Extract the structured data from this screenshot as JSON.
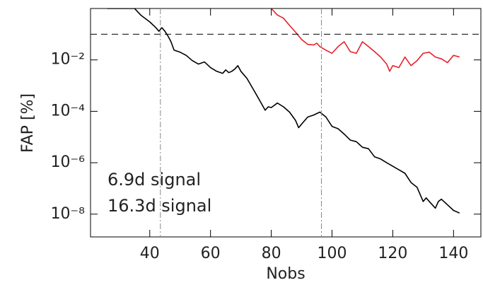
{
  "chart_data": {
    "type": "line",
    "xlabel": "Nobs",
    "ylabel": "FAP [%]",
    "xlim": [
      20.5,
      149
    ],
    "ylim": [
      1.3e-09,
      1
    ],
    "log_y": true,
    "xticks": [
      40,
      60,
      80,
      100,
      120,
      140
    ],
    "yticks": [
      {
        "value": 0.01,
        "label": "10⁻²"
      },
      {
        "value": 0.0001,
        "label": "10⁻⁴"
      },
      {
        "value": 1e-06,
        "label": "10⁻⁶"
      },
      {
        "value": 1e-08,
        "label": "10⁻⁸"
      }
    ],
    "hlines": [
      0.1
    ],
    "vlines": [
      43.5,
      96.5
    ],
    "series": [
      {
        "name": "6.9d signal",
        "color": "#e8202a",
        "x": [
          80,
          82,
          84,
          86,
          88,
          90,
          92,
          94,
          95,
          96,
          98,
          100,
          102,
          104,
          106,
          108,
          110,
          112,
          114,
          116,
          118,
          119,
          120,
          122,
          124,
          126,
          128,
          130,
          132,
          134,
          136,
          138,
          140,
          142
        ],
        "values": [
          1,
          0.56,
          0.42,
          0.22,
          0.12,
          0.062,
          0.04,
          0.038,
          0.045,
          0.033,
          0.024,
          0.018,
          0.033,
          0.051,
          0.021,
          0.018,
          0.051,
          0.033,
          0.021,
          0.013,
          0.0069,
          0.0036,
          0.006,
          0.005,
          0.013,
          0.006,
          0.0094,
          0.018,
          0.02,
          0.013,
          0.011,
          0.0078,
          0.015,
          0.013
        ]
      },
      {
        "name": "16.3d signal",
        "color": "#000000",
        "x": [
          26,
          28,
          30,
          32,
          34,
          35,
          37,
          40,
          42,
          43,
          44,
          45,
          46,
          47,
          48,
          50,
          52,
          54,
          56,
          58,
          60,
          62,
          64,
          65,
          66,
          67,
          68,
          69,
          70,
          72,
          74,
          76,
          78,
          79,
          80,
          82,
          84,
          86,
          88,
          89,
          90,
          92,
          94,
          96,
          98,
          100,
          102,
          104,
          106,
          108,
          110,
          112,
          114,
          116,
          118,
          120,
          122,
          124,
          126,
          128,
          130,
          131,
          132,
          133,
          134,
          135,
          136,
          138,
          140,
          142
        ],
        "values": [
          1,
          1,
          1,
          1,
          1,
          1,
          0.56,
          0.3,
          0.18,
          0.13,
          0.18,
          0.13,
          0.085,
          0.051,
          0.024,
          0.02,
          0.015,
          0.0094,
          0.0069,
          0.0083,
          0.005,
          0.0036,
          0.003,
          0.0041,
          0.0032,
          0.0036,
          0.0044,
          0.006,
          0.0036,
          0.0019,
          0.00075,
          0.00029,
          0.00011,
          0.00015,
          0.00014,
          0.00021,
          0.00015,
          9.3e-05,
          4.4e-05,
          2.3e-05,
          3.2e-05,
          6e-05,
          7.2e-05,
          9.3e-05,
          6e-05,
          2.6e-05,
          2.1e-05,
          1.3e-05,
          7.6e-06,
          6.6e-06,
          4e-06,
          3.5e-06,
          1.7e-06,
          1.4e-06,
          1e-06,
          7.3e-07,
          5.3e-07,
          3.9e-07,
          1.7e-07,
          1.1e-07,
          3.1e-08,
          4.3e-08,
          3.1e-08,
          2.3e-08,
          1.7e-08,
          3.1e-08,
          3.8e-08,
          2.3e-08,
          1.4e-08,
          1.1e-08
        ]
      }
    ]
  }
}
